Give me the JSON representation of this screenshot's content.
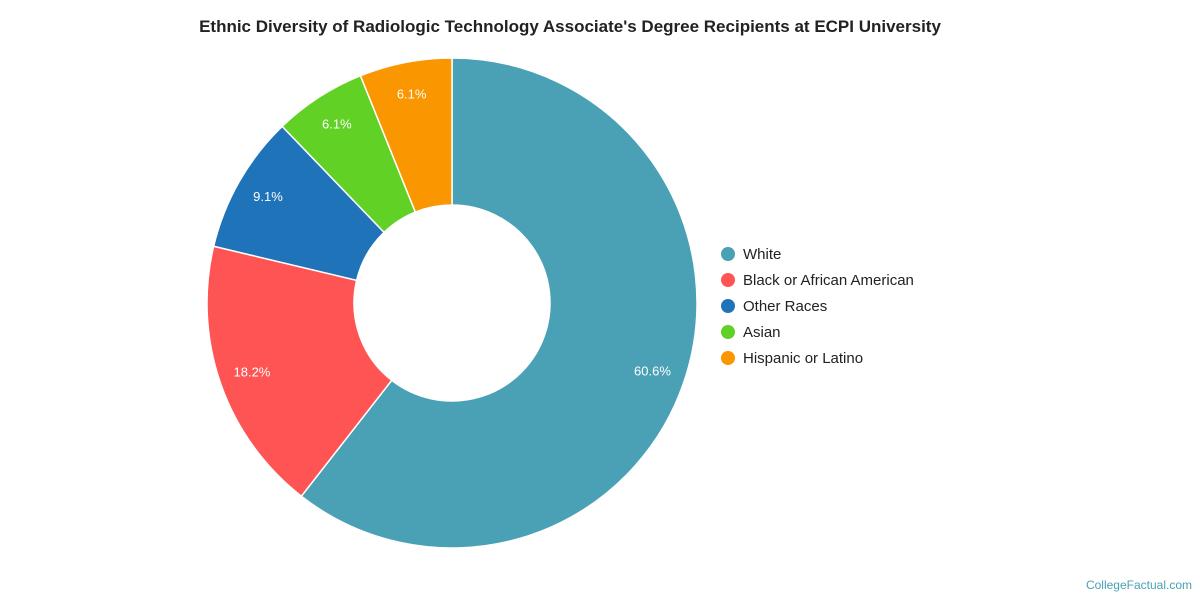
{
  "chart_data": {
    "type": "pie",
    "donut": true,
    "title": "Ethnic Diversity of Radiologic Technology Associate's Degree Recipients at ECPI University",
    "series": [
      {
        "name": "White",
        "value": 60.6,
        "label": "60.6%",
        "color": "#4aa0b5"
      },
      {
        "name": "Black or African American",
        "value": 18.2,
        "label": "18.2%",
        "color": "#ff5454"
      },
      {
        "name": "Other Races",
        "value": 9.1,
        "label": "9.1%",
        "color": "#1f73b8"
      },
      {
        "name": "Asian",
        "value": 6.1,
        "label": "6.1%",
        "color": "#61d126"
      },
      {
        "name": "Hispanic or Latino",
        "value": 6.1,
        "label": "6.1%",
        "color": "#fa9600"
      }
    ],
    "legend_position": "right"
  },
  "source": "CollegeFactual.com"
}
